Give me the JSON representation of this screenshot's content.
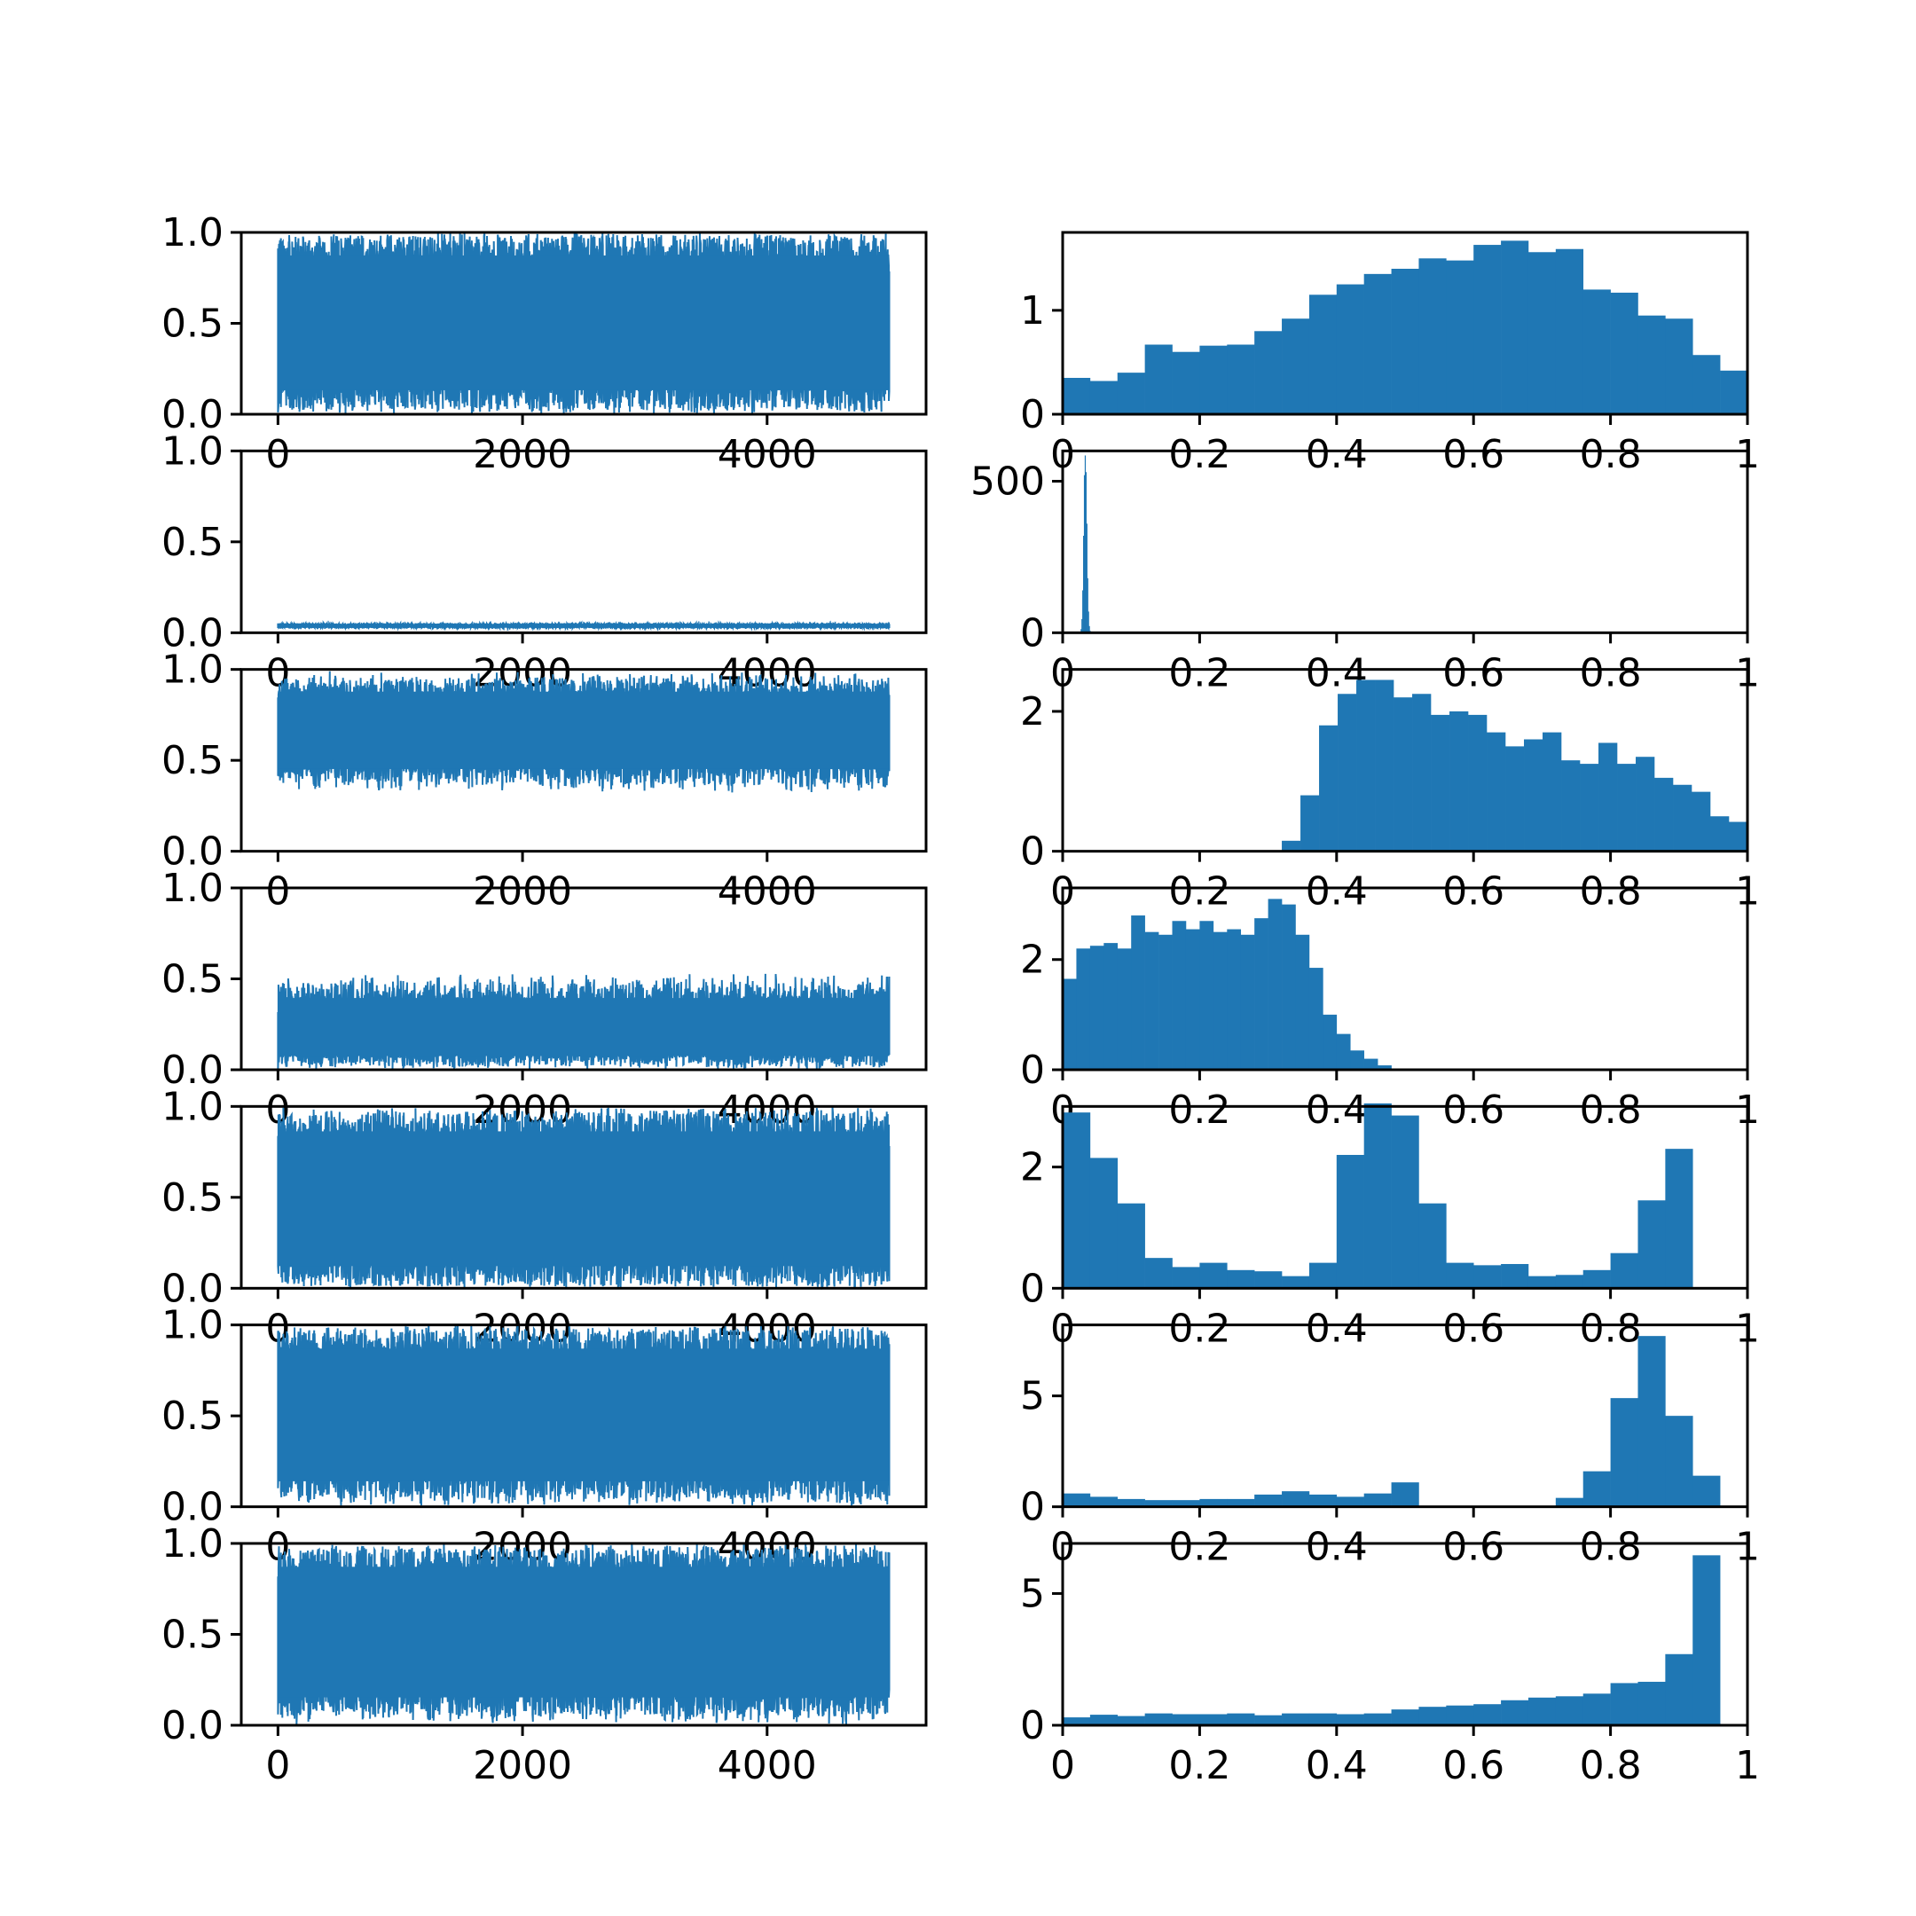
{
  "style": {
    "series_color": "#1f77b4",
    "axes_color": "#000000",
    "background": "#ffffff"
  },
  "chart_data": [
    {
      "row": 0,
      "type": "line",
      "title": "",
      "xlabel": "",
      "ylabel": "",
      "xlim": [
        -300,
        5300
      ],
      "ylim": [
        0,
        1
      ],
      "x_ticks": [
        0,
        2000,
        4000
      ],
      "y_ticks": [
        0.0,
        0.5,
        1.0
      ],
      "y_tick_labels": [
        "0.0",
        "0.5",
        "1.0"
      ],
      "n_samples": 5000,
      "envelope": {
        "low": [
          0.0,
          0.03
        ],
        "high": [
          0.98,
          1.0
        ]
      },
      "grid": false
    },
    {
      "row": 0,
      "type": "bar",
      "title": "",
      "xlabel": "",
      "ylabel": "",
      "xlim": [
        0,
        1
      ],
      "ylim": [
        0,
        1.75
      ],
      "x_ticks": [
        0.0,
        0.2,
        0.4,
        0.6,
        0.8,
        1.0
      ],
      "y_ticks": [
        0,
        1
      ],
      "y_tick_labels": [
        "0",
        "1"
      ],
      "bins": 25,
      "values": [
        0.35,
        0.32,
        0.4,
        0.67,
        0.6,
        0.66,
        0.67,
        0.8,
        0.92,
        1.15,
        1.25,
        1.35,
        1.4,
        1.5,
        1.48,
        1.63,
        1.67,
        1.56,
        1.59,
        1.2,
        1.17,
        0.95,
        0.92,
        0.57,
        0.42
      ],
      "grid": false
    },
    {
      "row": 1,
      "type": "line",
      "title": "",
      "xlabel": "",
      "ylabel": "",
      "xlim": [
        -300,
        5300
      ],
      "ylim": [
        0,
        1
      ],
      "x_ticks": [
        0,
        2000,
        4000
      ],
      "y_ticks": [
        0.0,
        0.5,
        1.0
      ],
      "y_tick_labels": [
        "0.0",
        "0.5",
        "1.0"
      ],
      "n_samples": 5000,
      "envelope": {
        "low": [
          0.025,
          0.032
        ],
        "high": [
          0.045,
          0.052
        ]
      },
      "grid": false
    },
    {
      "row": 1,
      "type": "bar",
      "title": "",
      "xlabel": "",
      "ylabel": "",
      "xlim": [
        0,
        1
      ],
      "ylim": [
        0,
        600
      ],
      "x_ticks": [
        0.0,
        0.2,
        0.4,
        0.6,
        0.8,
        1.0
      ],
      "y_ticks": [
        0,
        500
      ],
      "y_tick_labels": [
        "0",
        "500"
      ],
      "bins": 25,
      "bin_range": [
        0.025,
        0.055
      ],
      "values": [
        3,
        12,
        45,
        140,
        320,
        520,
        585,
        530,
        360,
        180,
        70,
        22,
        6,
        2,
        0,
        0,
        0,
        0,
        0,
        0,
        0,
        0,
        0,
        0,
        0
      ],
      "grid": false
    },
    {
      "row": 2,
      "type": "line",
      "title": "",
      "xlabel": "",
      "ylabel": "",
      "xlim": [
        -300,
        5300
      ],
      "ylim": [
        0,
        1
      ],
      "x_ticks": [
        0,
        2000,
        4000
      ],
      "y_ticks": [
        0.0,
        0.5,
        1.0
      ],
      "y_tick_labels": [
        "0.0",
        "0.5",
        "1.0"
      ],
      "n_samples": 5000,
      "envelope": {
        "low": [
          0.32,
          0.45
        ],
        "high": [
          0.9,
          0.99
        ]
      },
      "grid": false
    },
    {
      "row": 2,
      "type": "bar",
      "title": "",
      "xlabel": "",
      "ylabel": "",
      "xlim": [
        0,
        1
      ],
      "ylim": [
        0,
        2.6
      ],
      "x_ticks": [
        0.0,
        0.2,
        0.4,
        0.6,
        0.8,
        1.0
      ],
      "y_ticks": [
        0,
        2
      ],
      "y_tick_labels": [
        "0",
        "2"
      ],
      "bins": 25,
      "bin_range": [
        0.32,
        1.0
      ],
      "values": [
        0.15,
        0.8,
        1.8,
        2.25,
        2.45,
        2.45,
        2.2,
        2.25,
        1.95,
        2.0,
        1.95,
        1.7,
        1.5,
        1.6,
        1.7,
        1.3,
        1.25,
        1.55,
        1.25,
        1.35,
        1.05,
        0.95,
        0.85,
        0.5,
        0.42
      ],
      "grid": false
    },
    {
      "row": 3,
      "type": "line",
      "title": "",
      "xlabel": "",
      "ylabel": "",
      "xlim": [
        -300,
        5300
      ],
      "ylim": [
        0,
        1
      ],
      "x_ticks": [
        0,
        2000,
        4000
      ],
      "y_ticks": [
        0.0,
        0.5,
        1.0
      ],
      "y_tick_labels": [
        "0.0",
        "0.5",
        "1.0"
      ],
      "n_samples": 5000,
      "envelope": {
        "low": [
          0.0,
          0.05
        ],
        "high": [
          0.36,
          0.53
        ]
      },
      "grid": false
    },
    {
      "row": 3,
      "type": "bar",
      "title": "",
      "xlabel": "",
      "ylabel": "",
      "xlim": [
        0,
        1
      ],
      "ylim": [
        0,
        3.3
      ],
      "x_ticks": [
        0.0,
        0.2,
        0.4,
        0.6,
        0.8,
        1.0
      ],
      "y_ticks": [
        0,
        2
      ],
      "y_tick_labels": [
        "0",
        "2"
      ],
      "bins": 25,
      "bin_range": [
        0.0,
        0.5
      ],
      "values": [
        1.65,
        2.2,
        2.25,
        2.3,
        2.2,
        2.8,
        2.5,
        2.45,
        2.7,
        2.55,
        2.7,
        2.5,
        2.55,
        2.45,
        2.75,
        3.1,
        3.0,
        2.45,
        1.85,
        1.0,
        0.65,
        0.35,
        0.2,
        0.08,
        0.02
      ],
      "grid": false
    },
    {
      "row": 4,
      "type": "line",
      "title": "",
      "xlabel": "",
      "ylabel": "",
      "xlim": [
        -300,
        5300
      ],
      "ylim": [
        0,
        1
      ],
      "x_ticks": [
        0,
        2000,
        4000
      ],
      "y_ticks": [
        0.0,
        0.5,
        1.0
      ],
      "y_tick_labels": [
        "0.0",
        "0.5",
        "1.0"
      ],
      "n_samples": 5000,
      "envelope": {
        "low": [
          0.0,
          0.01
        ],
        "high": [
          0.96,
          1.0
        ]
      },
      "grid": false
    },
    {
      "row": 4,
      "type": "bar",
      "title": "",
      "xlabel": "",
      "ylabel": "",
      "xlim": [
        0,
        1
      ],
      "ylim": [
        0,
        3.0
      ],
      "x_ticks": [
        0.0,
        0.2,
        0.4,
        0.6,
        0.8,
        1.0
      ],
      "y_ticks": [
        0,
        2
      ],
      "y_tick_labels": [
        "0",
        "2"
      ],
      "bins": 25,
      "values": [
        2.9,
        2.15,
        1.4,
        0.5,
        0.35,
        0.42,
        0.3,
        0.28,
        0.2,
        0.42,
        2.2,
        3.05,
        2.85,
        1.4,
        0.42,
        0.38,
        0.4,
        0.2,
        0.22,
        0.3,
        0.58,
        1.45,
        2.3,
        0,
        0
      ],
      "grid": false
    },
    {
      "row": 5,
      "type": "line",
      "title": "",
      "xlabel": "",
      "ylabel": "",
      "xlim": [
        -300,
        5300
      ],
      "ylim": [
        0,
        1
      ],
      "x_ticks": [
        0,
        2000,
        4000
      ],
      "y_ticks": [
        0.0,
        0.5,
        1.0
      ],
      "y_tick_labels": [
        "0.0",
        "0.5",
        "1.0"
      ],
      "n_samples": 5000,
      "envelope": {
        "low": [
          0.0,
          0.05
        ],
        "high": [
          0.97,
          1.0
        ]
      },
      "grid": false
    },
    {
      "row": 5,
      "type": "bar",
      "title": "",
      "xlabel": "",
      "ylabel": "",
      "xlim": [
        0,
        1
      ],
      "ylim": [
        0,
        8.2
      ],
      "x_ticks": [
        0.0,
        0.2,
        0.4,
        0.6,
        0.8,
        1.0
      ],
      "y_ticks": [
        0,
        5
      ],
      "y_tick_labels": [
        "0",
        "5"
      ],
      "bins": 25,
      "values": [
        0.6,
        0.45,
        0.35,
        0.3,
        0.3,
        0.35,
        0.35,
        0.55,
        0.7,
        0.55,
        0.45,
        0.6,
        1.1,
        0,
        0,
        0,
        0,
        0,
        0.4,
        1.6,
        4.9,
        7.7,
        4.1,
        1.4,
        0
      ],
      "grid": false
    },
    {
      "row": 6,
      "type": "line",
      "title": "",
      "xlabel": "",
      "ylabel": "",
      "xlim": [
        -300,
        5300
      ],
      "ylim": [
        0,
        1
      ],
      "x_ticks": [
        0,
        2000,
        4000
      ],
      "y_ticks": [
        0.0,
        0.5,
        1.0
      ],
      "y_tick_labels": [
        "0.0",
        "0.5",
        "1.0"
      ],
      "n_samples": 5000,
      "envelope": {
        "low": [
          0.0,
          0.08
        ],
        "high": [
          0.97,
          1.0
        ]
      },
      "grid": false
    },
    {
      "row": 6,
      "type": "bar",
      "title": "",
      "xlabel": "",
      "ylabel": "",
      "xlim": [
        0,
        1
      ],
      "ylim": [
        0,
        6.9
      ],
      "x_ticks": [
        0.0,
        0.2,
        0.4,
        0.6,
        0.8,
        1.0
      ],
      "y_ticks": [
        0,
        5
      ],
      "y_tick_labels": [
        "0",
        "5"
      ],
      "bins": 25,
      "values": [
        0.3,
        0.4,
        0.35,
        0.45,
        0.42,
        0.42,
        0.45,
        0.38,
        0.45,
        0.45,
        0.42,
        0.45,
        0.6,
        0.7,
        0.75,
        0.8,
        0.95,
        1.05,
        1.1,
        1.2,
        1.6,
        1.65,
        2.7,
        6.45,
        0
      ],
      "grid": false
    }
  ]
}
